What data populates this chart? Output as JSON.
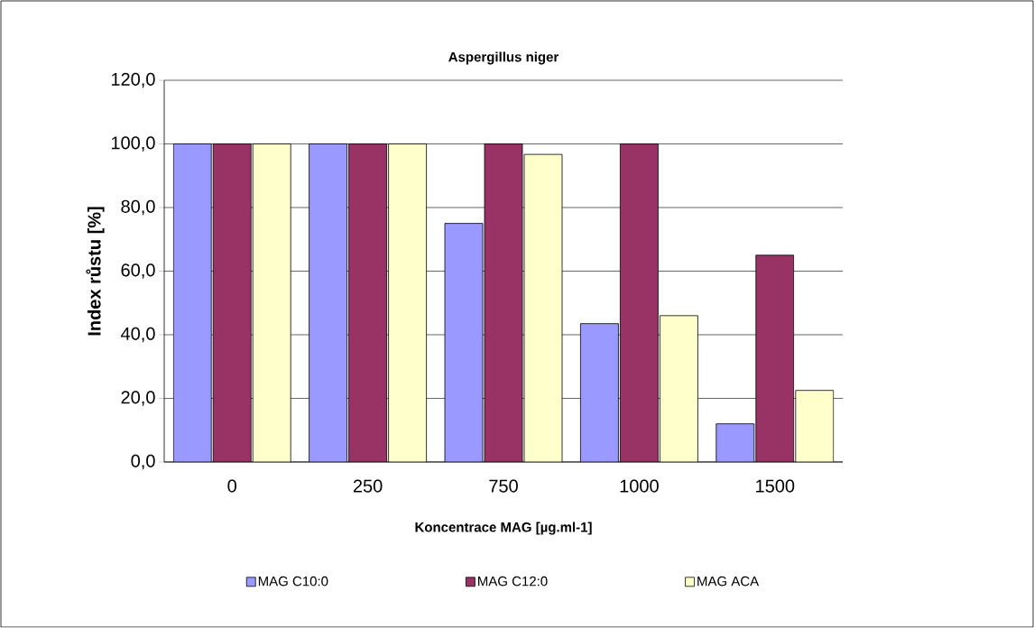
{
  "chart_data": {
    "type": "bar",
    "title": "Aspergillus niger",
    "xlabel": "Koncentrace MAG [µg.ml-1]",
    "ylabel": "Index růstu [%]",
    "categories": [
      "0",
      "250",
      "750",
      "1000",
      "1500"
    ],
    "series": [
      {
        "name": "MAG C10:0",
        "color": "#9999ff",
        "values": [
          100,
          100,
          75,
          43.5,
          12
        ]
      },
      {
        "name": "MAG C12:0",
        "color": "#993366",
        "values": [
          100,
          100,
          100,
          100,
          65
        ]
      },
      {
        "name": "MAG ACA",
        "color": "#ffffcc",
        "values": [
          100,
          100,
          96.7,
          46,
          22.5
        ]
      }
    ],
    "ylim": [
      0,
      120
    ],
    "yticks": [
      {
        "value": 0,
        "label": "0,0"
      },
      {
        "value": 20,
        "label": "20,0"
      },
      {
        "value": 40,
        "label": "40,0"
      },
      {
        "value": 60,
        "label": "60,0"
      },
      {
        "value": 80,
        "label": "80,0"
      },
      {
        "value": 100,
        "label": "100,0"
      },
      {
        "value": 120,
        "label": "120,0"
      }
    ],
    "grid": "y",
    "legend": "bottom"
  }
}
